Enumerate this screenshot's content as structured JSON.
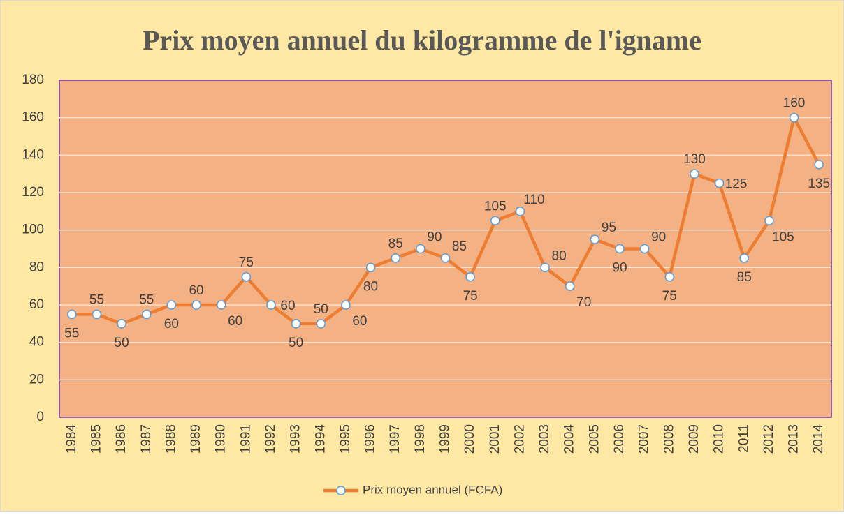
{
  "chart_data": {
    "type": "line",
    "title": "Prix moyen annuel du kilogramme de l'igname",
    "categories": [
      "1984",
      "1985",
      "1986",
      "1987",
      "1988",
      "1989",
      "1990",
      "1991",
      "1992",
      "1993",
      "1994",
      "1995",
      "1996",
      "1997",
      "1998",
      "1999",
      "2000",
      "2001",
      "2002",
      "2003",
      "2004",
      "2005",
      "2006",
      "2007",
      "2008",
      "2009",
      "2010",
      "2011",
      "2012",
      "2013",
      "2014"
    ],
    "series": [
      {
        "name": "Prix moyen annuel (FCFA)",
        "color": "#ED7D31",
        "values": [
          55,
          55,
          50,
          55,
          60,
          60,
          60,
          75,
          60,
          50,
          50,
          60,
          80,
          85,
          90,
          85,
          75,
          105,
          110,
          80,
          70,
          95,
          90,
          90,
          75,
          130,
          125,
          85,
          105,
          160,
          135
        ]
      }
    ],
    "ylim": [
      0,
      180
    ],
    "yticks": [
      0,
      20,
      40,
      60,
      80,
      100,
      120,
      140,
      160,
      180
    ],
    "grid": true,
    "legend": "bottom"
  }
}
